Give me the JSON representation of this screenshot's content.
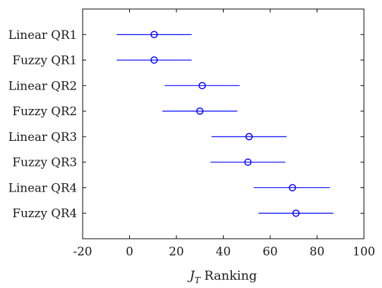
{
  "chart_data": {
    "type": "scatter",
    "subtype": "interval-plot",
    "categories": [
      "Linear QR1",
      "Fuzzy QR1",
      "Linear QR2",
      "Fuzzy QR2",
      "Linear QR3",
      "Fuzzy QR3",
      "Linear QR4",
      "Fuzzy QR4"
    ],
    "series": [
      {
        "marker": "circle",
        "means": [
          10.5,
          10.5,
          31.0,
          30.0,
          51.0,
          50.5,
          69.5,
          71.0
        ],
        "lower": [
          -5.5,
          -5.5,
          15.0,
          14.0,
          35.0,
          34.5,
          53.0,
          55.0
        ],
        "upper": [
          26.5,
          26.5,
          47.0,
          46.0,
          67.0,
          66.5,
          85.5,
          87.0
        ]
      }
    ],
    "xlabel_italic": "J",
    "xlabel_sub": "T",
    "xlabel_rest": " Ranking",
    "xlim": [
      -20,
      100
    ],
    "xticks": [
      -20,
      0,
      20,
      40,
      60,
      80,
      100
    ],
    "xtick_labels": [
      "-20",
      "0",
      "20",
      "40",
      "60",
      "80",
      "100"
    ],
    "grid": false,
    "color": "#0000ff"
  }
}
